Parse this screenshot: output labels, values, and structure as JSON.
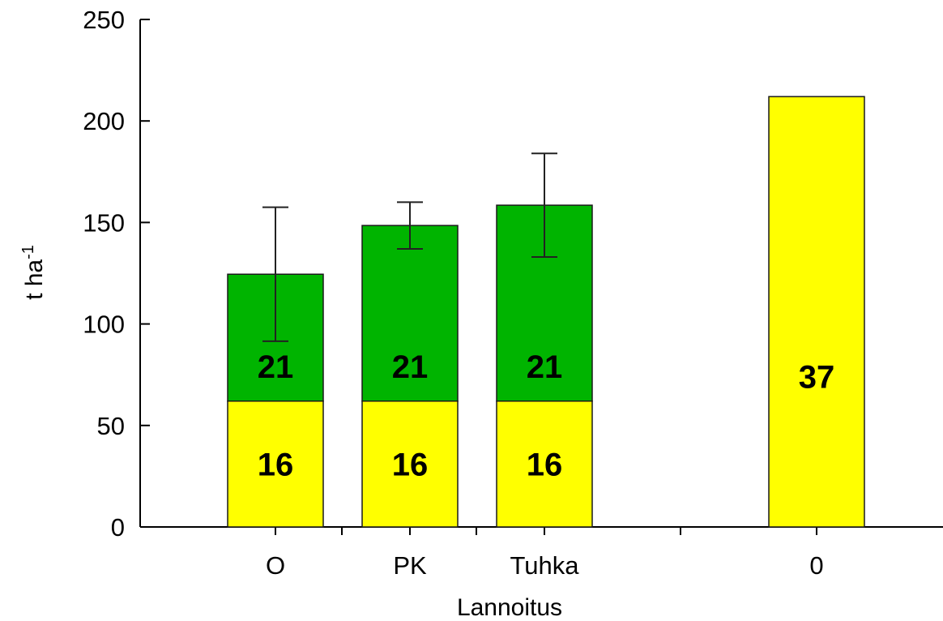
{
  "chart_data": {
    "type": "bar",
    "stacked": true,
    "xlabel": "Lannoitus",
    "ylabel": "t ha",
    "ylabel_superscript": "-1",
    "ylim": [
      0,
      250
    ],
    "yticks": [
      0,
      50,
      100,
      150,
      200,
      250
    ],
    "categories": [
      "O",
      "PK",
      "Tuhka",
      "0"
    ],
    "series": [
      {
        "color": "#ffff00",
        "values": [
          62,
          62,
          62,
          212
        ],
        "labels": [
          "16",
          "16",
          "16",
          "37"
        ]
      },
      {
        "color": "#00b400",
        "values": [
          62.5,
          86.5,
          96.5,
          0
        ],
        "labels": [
          "21",
          "21",
          "21",
          ""
        ]
      }
    ],
    "error_bars": [
      {
        "category": "O",
        "low": 91.5,
        "high": 157.5
      },
      {
        "category": "PK",
        "low": 137,
        "high": 160
      },
      {
        "category": "Tuhka",
        "low": 133,
        "high": 184
      }
    ],
    "grid": false,
    "legend": "none"
  }
}
